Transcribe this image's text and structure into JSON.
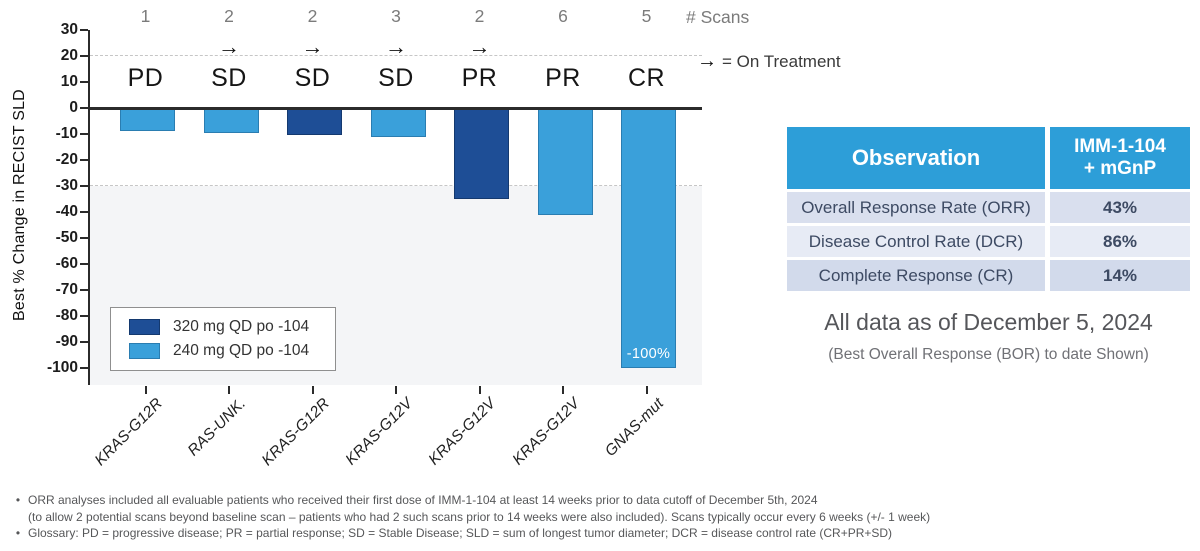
{
  "chart_data": {
    "type": "bar",
    "title": "",
    "ylabel": "Best % Change in RECIST SLD",
    "ylim": [
      -100,
      30
    ],
    "yticks": [
      30,
      20,
      10,
      0,
      -10,
      -20,
      -30,
      -40,
      -50,
      -60,
      -70,
      -80,
      -90,
      -100
    ],
    "dashed_gridlines": [
      20,
      -30
    ],
    "shaded_region_below": -30,
    "scans_header_label": "# Scans",
    "on_treatment_arrow": "→",
    "on_treatment_label": "= On Treatment",
    "categories": [
      "KRAS-G12R",
      "RAS-UNK.",
      "KRAS-G12R",
      "KRAS-G12V",
      "KRAS-G12V",
      "KRAS-G12V",
      "GNAS-mut"
    ],
    "patients": [
      {
        "mutation": "KRAS-G12R",
        "scans": "1",
        "response": "PD",
        "on_treatment": false,
        "dose": "240",
        "value": -9,
        "bar_label": ""
      },
      {
        "mutation": "RAS-UNK.",
        "scans": "2",
        "response": "SD",
        "on_treatment": true,
        "dose": "240",
        "value": -9.5,
        "bar_label": ""
      },
      {
        "mutation": "KRAS-G12R",
        "scans": "2",
        "response": "SD",
        "on_treatment": true,
        "dose": "320",
        "value": -10.5,
        "bar_label": ""
      },
      {
        "mutation": "KRAS-G12V",
        "scans": "3",
        "response": "SD",
        "on_treatment": true,
        "dose": "240",
        "value": -11,
        "bar_label": ""
      },
      {
        "mutation": "KRAS-G12V",
        "scans": "2",
        "response": "PR",
        "on_treatment": true,
        "dose": "320",
        "value": -35,
        "bar_label": ""
      },
      {
        "mutation": "KRAS-G12V",
        "scans": "6",
        "response": "PR",
        "on_treatment": false,
        "dose": "240",
        "value": -41,
        "bar_label": ""
      },
      {
        "mutation": "GNAS-mut",
        "scans": "5",
        "response": "CR",
        "on_treatment": false,
        "dose": "240",
        "value": -100,
        "bar_label": "-100%"
      }
    ],
    "legend": [
      {
        "dose": "320",
        "label": "320 mg QD po -104",
        "color": "#1e4e96",
        "border_color": "#14396f"
      },
      {
        "dose": "240",
        "label": "240 mg QD po -104",
        "color": "#3aa0da",
        "border_color": "#2a7db1"
      }
    ],
    "legend_position": "lower left"
  },
  "table": {
    "header_col1": "Observation",
    "header_col2": "IMM-1-104 + mGnP",
    "header_col2_lines": [
      "IMM-1-104",
      "+ mGnP"
    ],
    "header_bg": "#2d9ed8",
    "row_bgs": [
      "#d9dfee",
      "#e7ebf5",
      "#d2daeb"
    ],
    "rows": [
      {
        "label": "Overall Response Rate (ORR)",
        "value": "43%"
      },
      {
        "label": "Disease Control Rate (DCR)",
        "value": "86%"
      },
      {
        "label": "Complete Response (CR)",
        "value": "14%"
      }
    ]
  },
  "notes": {
    "data_as_of": "All data as of December 5, 2024",
    "bor": "(Best Overall Response (BOR) to date Shown)"
  },
  "footnotes": [
    {
      "bullet": true,
      "text": "ORR analyses included all evaluable patients who received their first dose of IMM-1-104 at least 14 weeks prior to data cutoff of December 5th, 2024"
    },
    {
      "bullet": false,
      "text": "(to allow 2 potential scans beyond baseline scan – patients who had 2 such scans prior to 14 weeks were also included). Scans typically occur every 6 weeks (+/- 1 week)"
    },
    {
      "bullet": true,
      "text": "Glossary: PD = progressive disease; PR = partial response; SD = Stable Disease; SLD = sum of longest tumor diameter; DCR = disease control rate (CR+PR+SD)"
    }
  ]
}
